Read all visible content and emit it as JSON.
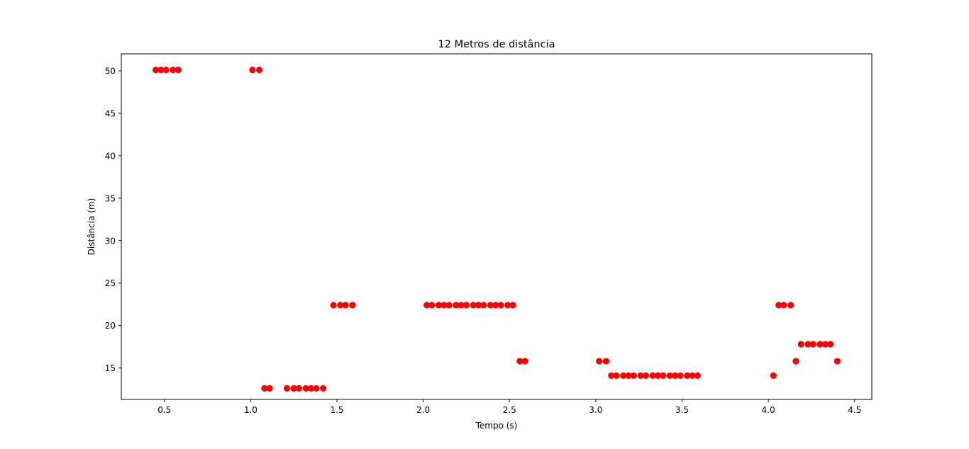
{
  "chart_data": {
    "type": "scatter",
    "title": "12 Metros de distância",
    "xlabel": "Tempo (s)",
    "ylabel": "Distância (m)",
    "xlim": [
      0.25,
      4.6
    ],
    "ylim": [
      11.3,
      52.0
    ],
    "xticks": [
      0.5,
      1.0,
      1.5,
      2.0,
      2.5,
      3.0,
      3.5,
      4.0,
      4.5
    ],
    "xtick_labels": [
      "0.5",
      "1.0",
      "1.5",
      "2.0",
      "2.5",
      "3.0",
      "3.5",
      "4.0",
      "4.5"
    ],
    "yticks": [
      15,
      20,
      25,
      30,
      35,
      40,
      45,
      50
    ],
    "ytick_labels": [
      "15",
      "20",
      "25",
      "30",
      "35",
      "40",
      "45",
      "50"
    ],
    "grid": false,
    "marker_color": "#ff0000",
    "points": [
      [
        0.45,
        50.1
      ],
      [
        0.48,
        50.1
      ],
      [
        0.51,
        50.1
      ],
      [
        0.55,
        50.1
      ],
      [
        0.58,
        50.1
      ],
      [
        1.01,
        50.1
      ],
      [
        1.05,
        50.1
      ],
      [
        1.08,
        12.6
      ],
      [
        1.11,
        12.6
      ],
      [
        1.21,
        12.6
      ],
      [
        1.25,
        12.6
      ],
      [
        1.28,
        12.6
      ],
      [
        1.32,
        12.6
      ],
      [
        1.35,
        12.6
      ],
      [
        1.38,
        12.6
      ],
      [
        1.42,
        12.6
      ],
      [
        1.48,
        22.4
      ],
      [
        1.52,
        22.4
      ],
      [
        1.55,
        22.4
      ],
      [
        1.59,
        22.4
      ],
      [
        2.02,
        22.4
      ],
      [
        2.05,
        22.4
      ],
      [
        2.09,
        22.4
      ],
      [
        2.12,
        22.4
      ],
      [
        2.15,
        22.4
      ],
      [
        2.19,
        22.4
      ],
      [
        2.22,
        22.4
      ],
      [
        2.25,
        22.4
      ],
      [
        2.29,
        22.4
      ],
      [
        2.32,
        22.4
      ],
      [
        2.35,
        22.4
      ],
      [
        2.39,
        22.4
      ],
      [
        2.42,
        22.4
      ],
      [
        2.45,
        22.4
      ],
      [
        2.49,
        22.4
      ],
      [
        2.52,
        22.4
      ],
      [
        2.56,
        15.8
      ],
      [
        2.59,
        15.8
      ],
      [
        3.02,
        15.8
      ],
      [
        3.06,
        15.8
      ],
      [
        3.09,
        14.1
      ],
      [
        3.12,
        14.1
      ],
      [
        3.16,
        14.1
      ],
      [
        3.19,
        14.1
      ],
      [
        3.22,
        14.1
      ],
      [
        3.26,
        14.1
      ],
      [
        3.29,
        14.1
      ],
      [
        3.33,
        14.1
      ],
      [
        3.36,
        14.1
      ],
      [
        3.39,
        14.1
      ],
      [
        3.43,
        14.1
      ],
      [
        3.46,
        14.1
      ],
      [
        3.49,
        14.1
      ],
      [
        3.53,
        14.1
      ],
      [
        3.56,
        14.1
      ],
      [
        3.59,
        14.1
      ],
      [
        4.03,
        14.1
      ],
      [
        4.06,
        22.4
      ],
      [
        4.09,
        22.4
      ],
      [
        4.13,
        22.4
      ],
      [
        4.16,
        15.8
      ],
      [
        4.19,
        17.8
      ],
      [
        4.23,
        17.8
      ],
      [
        4.26,
        17.8
      ],
      [
        4.3,
        17.8
      ],
      [
        4.33,
        17.8
      ],
      [
        4.36,
        17.8
      ],
      [
        4.4,
        15.8
      ]
    ]
  }
}
